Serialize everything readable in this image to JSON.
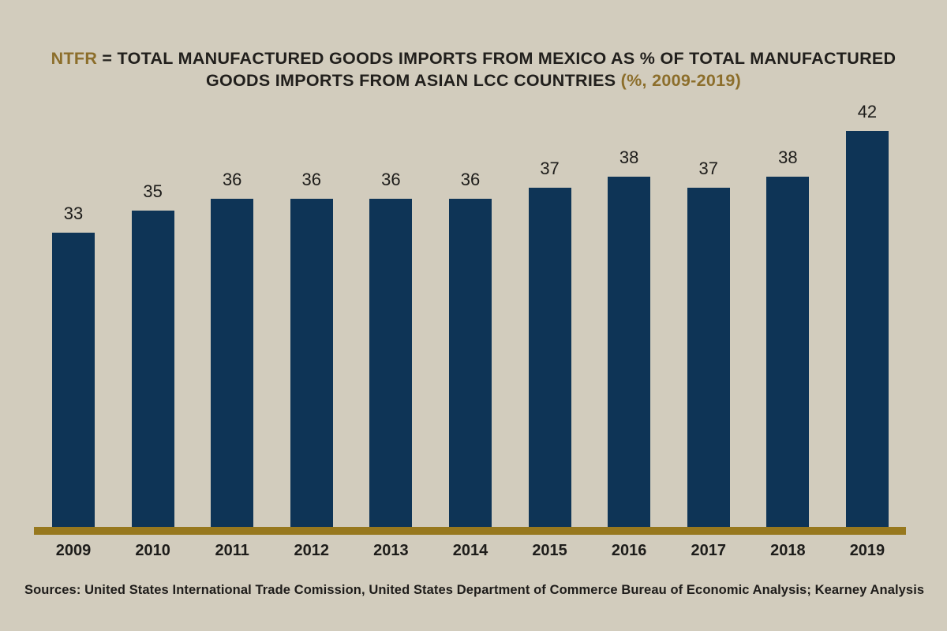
{
  "title": {
    "line1": [
      {
        "text": "NTFR",
        "style": "gold"
      },
      {
        "text": " = TOTAL MANUFACTURED GOODS IMPORTS FROM MEXICO AS % OF TOTAL MANUFACTURED",
        "style": "dark"
      }
    ],
    "line2": [
      {
        "text": "GOODS IMPORTS FROM ASIAN LCC COUNTRIES ",
        "style": "dark"
      },
      {
        "text": "(%, 2009-2019)",
        "style": "gold"
      }
    ]
  },
  "chart_data": {
    "type": "bar",
    "title": "NTFR = TOTAL MANUFACTURED GOODS IMPORTS FROM MEXICO AS % OF TOTAL MANUFACTURED GOODS IMPORTS FROM ASIAN LCC COUNTRIES (%, 2009-2019)",
    "categories": [
      "2009",
      "2010",
      "2011",
      "2012",
      "2013",
      "2014",
      "2015",
      "2016",
      "2017",
      "2018",
      "2019"
    ],
    "values": [
      33,
      35,
      36,
      36,
      36,
      36,
      37,
      38,
      37,
      38,
      42
    ],
    "unit": "%",
    "xlabel": "",
    "ylabel": "",
    "data_labels_shown": true,
    "grid": false,
    "legend": false,
    "baseline_axis": "x"
  },
  "source": "Sources: United States International Trade Comission, United States Department of Commerce Bureau of Economic Analysis; Kearney Analysis",
  "colors": {
    "background": "#d2ccbd",
    "bar": "#0e3456",
    "gold_accent_text": "#8c6e2b",
    "axis_line_gold": "#97781e",
    "text_dark": "#1d1c1a"
  }
}
